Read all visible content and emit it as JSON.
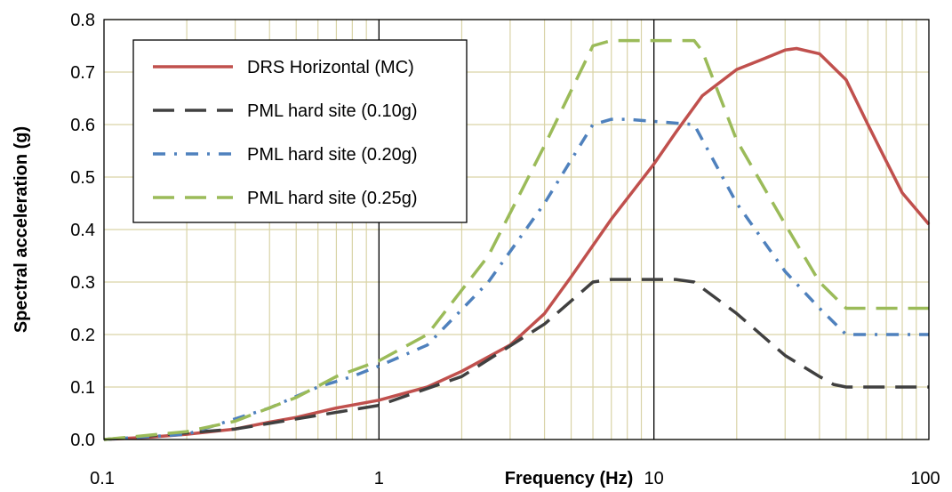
{
  "chart_data": {
    "type": "line",
    "title": "",
    "xlabel": "Frequency (Hz)",
    "ylabel": "Spectral acceleration (g)",
    "xscale": "log",
    "xlim": [
      0.1,
      100
    ],
    "ylim": [
      0,
      0.8
    ],
    "x_ticks": [
      0.1,
      1,
      10,
      100
    ],
    "x_tick_labels": [
      "0.1",
      "1",
      "10",
      "100"
    ],
    "y_ticks": [
      0,
      0.1,
      0.2,
      0.3,
      0.4,
      0.5,
      0.6,
      0.7,
      0.8
    ],
    "y_tick_labels": [
      "0.0",
      "0.1",
      "0.2",
      "0.3",
      "0.4",
      "0.5",
      "0.6",
      "0.7",
      "0.8"
    ],
    "grid": true,
    "legend_position": "top-left",
    "series": [
      {
        "name": "DRS Horizontal (MC)",
        "color": "#c0504d",
        "dash": "solid",
        "x": [
          0.1,
          0.15,
          0.2,
          0.3,
          0.4,
          0.5,
          0.7,
          1.0,
          1.5,
          2.0,
          3.0,
          4.0,
          5.0,
          7.0,
          10.0,
          12.0,
          15.0,
          20.0,
          25.0,
          30.0,
          33.0,
          40.0,
          50.0,
          60.0,
          70.0,
          80.0,
          100.0
        ],
        "y": [
          0.0,
          0.005,
          0.01,
          0.02,
          0.033,
          0.042,
          0.06,
          0.075,
          0.1,
          0.13,
          0.18,
          0.24,
          0.31,
          0.42,
          0.525,
          0.585,
          0.655,
          0.705,
          0.725,
          0.742,
          0.745,
          0.735,
          0.685,
          0.6,
          0.53,
          0.47,
          0.41
        ]
      },
      {
        "name": "PML hard site (0.10g)",
        "color": "#404040",
        "dash": "long-dash",
        "x": [
          0.1,
          0.3,
          1.0,
          2.0,
          4.0,
          6.0,
          7.0,
          8.0,
          12.0,
          14.0,
          20.0,
          30.0,
          40.0,
          45.0,
          50.0,
          70.0,
          100.0
        ],
        "y": [
          0.0,
          0.02,
          0.065,
          0.12,
          0.22,
          0.3,
          0.305,
          0.305,
          0.305,
          0.3,
          0.24,
          0.16,
          0.12,
          0.105,
          0.1,
          0.1,
          0.1
        ]
      },
      {
        "name": "PML hard site (0.20g)",
        "color": "#4f81bd",
        "dash": "dash-dot",
        "x": [
          0.1,
          0.2,
          0.4,
          0.6,
          0.8,
          1.0,
          1.5,
          2.5,
          4.0,
          6.0,
          7.0,
          8.0,
          14.0,
          20.0,
          30.0,
          40.0,
          50.0,
          60.0,
          70.0,
          100.0
        ],
        "y": [
          0.0,
          0.01,
          0.06,
          0.1,
          0.12,
          0.14,
          0.18,
          0.3,
          0.45,
          0.6,
          0.61,
          0.61,
          0.6,
          0.45,
          0.32,
          0.25,
          0.2,
          0.2,
          0.2,
          0.2
        ]
      },
      {
        "name": "PML hard site (0.25g)",
        "color": "#9bbb59",
        "dash": "long-dash",
        "x": [
          0.1,
          0.2,
          0.3,
          0.5,
          0.7,
          1.0,
          1.5,
          2.5,
          4.0,
          6.0,
          7.0,
          8.0,
          14.0,
          15.0,
          20.0,
          30.0,
          40.0,
          50.0,
          60.0,
          70.0,
          100.0
        ],
        "y": [
          0.0,
          0.015,
          0.035,
          0.08,
          0.12,
          0.15,
          0.2,
          0.35,
          0.56,
          0.75,
          0.76,
          0.76,
          0.76,
          0.74,
          0.57,
          0.41,
          0.3,
          0.25,
          0.25,
          0.25,
          0.25
        ]
      }
    ]
  }
}
